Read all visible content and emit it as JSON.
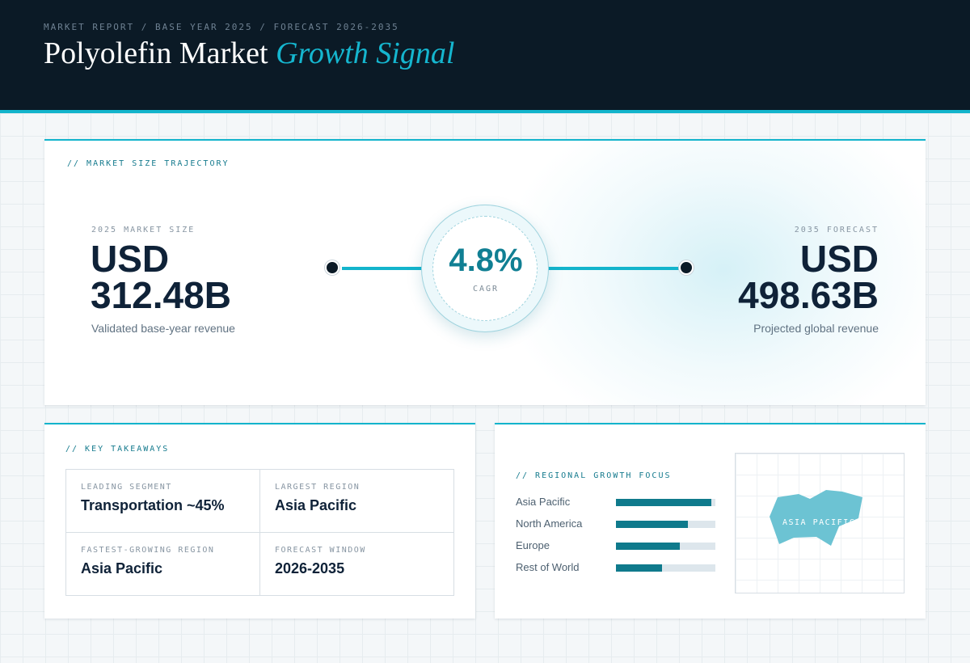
{
  "header": {
    "breadcrumb": "MARKET REPORT / BASE YEAR 2025 / FORECAST 2026-2035",
    "title_main": "Polyolefin Market",
    "title_accent": "Growth Signal"
  },
  "trajectory": {
    "label": "// MARKET SIZE TRAJECTORY",
    "start": {
      "eyebrow": "2025 MARKET SIZE",
      "currency": "USD",
      "value": "312.48B",
      "caption": "Validated base-year revenue"
    },
    "cagr": {
      "value": "4.8%",
      "label": "CAGR"
    },
    "end": {
      "eyebrow": "2035 FORECAST",
      "currency": "USD",
      "value": "498.63B",
      "caption": "Projected global revenue"
    }
  },
  "takeaways": {
    "label": "// KEY TAKEAWAYS",
    "items": [
      {
        "key": "LEADING SEGMENT",
        "value": "Transportation ~45%"
      },
      {
        "key": "LARGEST REGION",
        "value": "Asia Pacific"
      },
      {
        "key": "FASTEST-GROWING REGION",
        "value": "Asia Pacific"
      },
      {
        "key": "FORECAST WINDOW",
        "value": "2026-2035"
      }
    ]
  },
  "regional": {
    "label": "// REGIONAL GROWTH FOCUS",
    "regions": [
      {
        "name": "Asia Pacific",
        "share": 0.96
      },
      {
        "name": "North America",
        "share": 0.72
      },
      {
        "name": "Europe",
        "share": 0.64
      },
      {
        "name": "Rest of World",
        "share": 0.46
      }
    ],
    "map_label": "ASIA PACIFIC"
  },
  "colors": {
    "accent": "#13b4cc",
    "header_bg": "#0b1a26",
    "bar_fill": "#0f7a8c",
    "map_shape": "#6cc3d3"
  }
}
